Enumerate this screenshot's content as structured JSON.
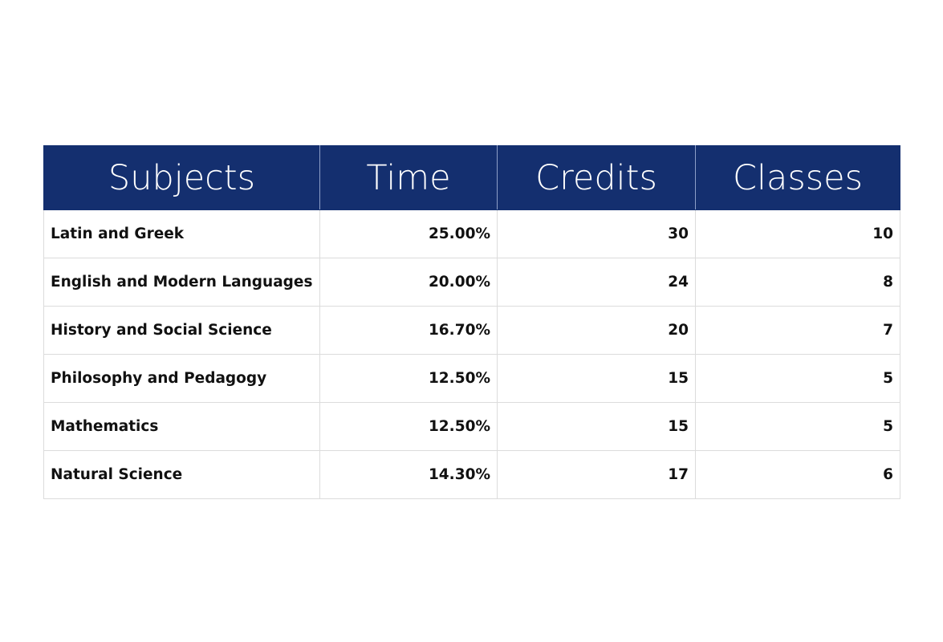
{
  "chart_data": {
    "type": "table",
    "columns": [
      "Subjects",
      "Time",
      "Credits",
      "Classes"
    ],
    "rows": [
      {
        "subject": "Latin and Greek",
        "time": "25.00%",
        "credits": "30",
        "classes": "10"
      },
      {
        "subject": "English and Modern Languages",
        "time": "20.00%",
        "credits": "24",
        "classes": "8"
      },
      {
        "subject": "History and Social Science",
        "time": "16.70%",
        "credits": "20",
        "classes": "7"
      },
      {
        "subject": "Philosophy and Pedagogy",
        "time": "12.50%",
        "credits": "15",
        "classes": "5"
      },
      {
        "subject": "Mathematics",
        "time": "12.50%",
        "credits": "15",
        "classes": "5"
      },
      {
        "subject": "Natural Science",
        "time": "14.30%",
        "credits": "17",
        "classes": "6"
      }
    ]
  },
  "colors": {
    "header_background": "#142f6f",
    "header_text": "#ffffff",
    "body_text": "#111111",
    "grid_line": "#dcdcdc"
  }
}
